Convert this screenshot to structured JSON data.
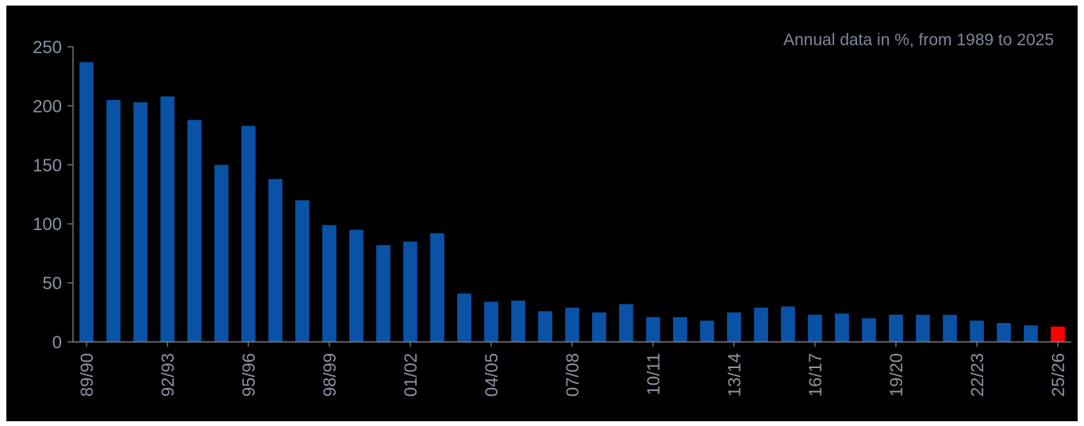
{
  "chart_data": {
    "type": "bar",
    "annotation": "Annual data in %, from 1989 to 2025",
    "categories": [
      "89/90",
      "90/91",
      "91/92",
      "92/93",
      "93/94",
      "94/95",
      "95/96",
      "96/97",
      "97/98",
      "98/99",
      "99/00",
      "00/01",
      "01/02",
      "02/03",
      "03/04",
      "04/05",
      "05/06",
      "06/07",
      "07/08",
      "08/09",
      "09/10",
      "10/11",
      "11/12",
      "12/13",
      "13/14",
      "14/15",
      "15/16",
      "16/17",
      "17/18",
      "18/19",
      "19/20",
      "20/21",
      "21/22",
      "22/23",
      "23/24",
      "24/25",
      "25/26"
    ],
    "shown_category_labels": [
      "89/90",
      "92/93",
      "95/96",
      "98/99",
      "01/02",
      "04/05",
      "07/08",
      "10/11",
      "13/14",
      "16/17",
      "19/20",
      "22/23",
      "25/26"
    ],
    "values": [
      237,
      205,
      203,
      208,
      188,
      150,
      183,
      138,
      120,
      99,
      95,
      82,
      85,
      92,
      41,
      34,
      35,
      26,
      29,
      25,
      32,
      21,
      21,
      18,
      25,
      29,
      30,
      23,
      24,
      20,
      23,
      23,
      23,
      18,
      16,
      14,
      13
    ],
    "ylim": [
      0,
      250
    ],
    "yticks": [
      0,
      50,
      100,
      150,
      200,
      250
    ],
    "bar_color": "#0a52a6",
    "highlight_index": 36,
    "highlight_color": "#ff0000",
    "background_color": "#000000",
    "grid": false,
    "legend": "none"
  }
}
